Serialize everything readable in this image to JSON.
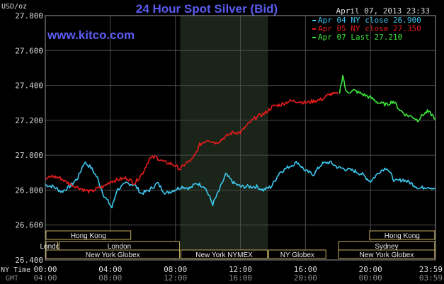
{
  "chart_data": {
    "type": "line",
    "title": "24 Hour Spot Silver (Bid)",
    "ylabel": "USD/oz",
    "date": "April 07, 2013 23:33",
    "watermark": "www.kitco.com",
    "ylim": [
      26.4,
      27.8
    ],
    "y_ticks": [
      "27.800",
      "27.600",
      "27.400",
      "27.200",
      "27.000",
      "26.800",
      "26.600",
      "26.400"
    ],
    "xlim": [
      0,
      24
    ],
    "x_ticks_ny": [
      "00:00",
      "04:00",
      "08:00",
      "12:00",
      "16:00",
      "20:00",
      "23:59"
    ],
    "x_ticks_gmt": [
      "04:00",
      "08:00",
      "12:00",
      "16:00",
      "20:00",
      "00:00",
      "03:59"
    ],
    "x_row_labels": [
      "NY Time",
      "GMT"
    ],
    "grid": true,
    "legend_position": "top-right",
    "highlight_band_hours": [
      8.3,
      13.7
    ],
    "series": [
      {
        "name": "Apr 04 NY close 26.900",
        "color": "#3cc8f0",
        "points": [
          [
            0,
            26.83
          ],
          [
            0.5,
            26.82
          ],
          [
            1,
            26.79
          ],
          [
            1.5,
            26.82
          ],
          [
            2,
            26.87
          ],
          [
            2.4,
            26.96
          ],
          [
            2.8,
            26.93
          ],
          [
            3.2,
            26.87
          ],
          [
            3.6,
            26.77
          ],
          [
            4.1,
            26.7
          ],
          [
            4.4,
            26.8
          ],
          [
            5,
            26.84
          ],
          [
            5.5,
            26.83
          ],
          [
            5.9,
            26.78
          ],
          [
            6.4,
            26.8
          ],
          [
            6.9,
            26.84
          ],
          [
            7.4,
            26.78
          ],
          [
            7.9,
            26.8
          ],
          [
            8.4,
            26.82
          ],
          [
            8.9,
            26.81
          ],
          [
            9.3,
            26.84
          ],
          [
            9.8,
            26.82
          ],
          [
            10.3,
            26.72
          ],
          [
            10.7,
            26.8
          ],
          [
            11.1,
            26.89
          ],
          [
            11.6,
            26.84
          ],
          [
            12,
            26.82
          ],
          [
            12.5,
            26.82
          ],
          [
            13,
            26.82
          ],
          [
            13.4,
            26.8
          ],
          [
            13.9,
            26.82
          ],
          [
            14.4,
            26.9
          ],
          [
            14.9,
            26.93
          ],
          [
            15.5,
            26.96
          ],
          [
            16,
            26.91
          ],
          [
            16.5,
            26.89
          ],
          [
            17,
            26.95
          ],
          [
            17.5,
            26.96
          ],
          [
            18,
            26.93
          ],
          [
            18.5,
            26.92
          ],
          [
            19,
            26.91
          ],
          [
            19.5,
            26.89
          ],
          [
            20,
            26.85
          ],
          [
            20.6,
            26.91
          ],
          [
            21,
            26.93
          ],
          [
            21.5,
            26.85
          ],
          [
            22,
            26.86
          ],
          [
            22.5,
            26.84
          ],
          [
            23,
            26.81
          ],
          [
            23.5,
            26.82
          ],
          [
            23.99,
            26.81
          ]
        ]
      },
      {
        "name": "Apr 05 NY close 27.350",
        "color": "#e81c1c",
        "points": [
          [
            0,
            26.86
          ],
          [
            0.4,
            26.88
          ],
          [
            0.9,
            26.87
          ],
          [
            1.4,
            26.84
          ],
          [
            1.9,
            26.82
          ],
          [
            2.4,
            26.8
          ],
          [
            2.8,
            26.79
          ],
          [
            3.2,
            26.81
          ],
          [
            3.6,
            26.82
          ],
          [
            4,
            26.85
          ],
          [
            4.5,
            26.86
          ],
          [
            5,
            26.87
          ],
          [
            5.5,
            26.84
          ],
          [
            6,
            26.9
          ],
          [
            6.4,
            26.98
          ],
          [
            6.8,
            26.99
          ],
          [
            7.3,
            26.96
          ],
          [
            7.8,
            26.95
          ],
          [
            8.3,
            26.92
          ],
          [
            8.6,
            26.95
          ],
          [
            9.1,
            26.98
          ],
          [
            9.5,
            27.06
          ],
          [
            10,
            27.09
          ],
          [
            10.5,
            27.07
          ],
          [
            11,
            27.1
          ],
          [
            11.5,
            27.13
          ],
          [
            12,
            27.13
          ],
          [
            12.5,
            27.18
          ],
          [
            13,
            27.22
          ],
          [
            13.5,
            27.24
          ],
          [
            14,
            27.28
          ],
          [
            14.5,
            27.29
          ],
          [
            15,
            27.31
          ],
          [
            15.5,
            27.31
          ],
          [
            16,
            27.3
          ],
          [
            16.5,
            27.31
          ],
          [
            17,
            27.32
          ],
          [
            17.5,
            27.35
          ],
          [
            18,
            27.35
          ]
        ]
      },
      {
        "name": "Apr 07 Last 27.210",
        "color": "#3ce83c",
        "points": [
          [
            18.1,
            27.36
          ],
          [
            18.3,
            27.46
          ],
          [
            18.5,
            27.36
          ],
          [
            19,
            27.37
          ],
          [
            19.5,
            27.35
          ],
          [
            20,
            27.33
          ],
          [
            20.5,
            27.3
          ],
          [
            21,
            27.29
          ],
          [
            21.4,
            27.31
          ],
          [
            21.8,
            27.26
          ],
          [
            22.2,
            27.23
          ],
          [
            22.6,
            27.22
          ],
          [
            22.9,
            27.2
          ],
          [
            23.2,
            27.23
          ],
          [
            23.5,
            27.25
          ],
          [
            23.8,
            27.23
          ],
          [
            23.99,
            27.21
          ]
        ]
      }
    ],
    "sessions": [
      {
        "label": "Hong Kong",
        "start": 0,
        "end": 5.3,
        "row": 0
      },
      {
        "label": "Hong Kong",
        "start": 19.9,
        "end": 23.99,
        "row": 0
      },
      {
        "label": "London",
        "start": 0,
        "end": 0.8,
        "row": 1
      },
      {
        "label": "London",
        "start": 0.8,
        "end": 8.3,
        "row": 1
      },
      {
        "label": "Sydney",
        "start": 18.0,
        "end": 23.99,
        "row": 1
      },
      {
        "label": "New York Globex",
        "start": 0,
        "end": 8.3,
        "row": 2
      },
      {
        "label": "New York NYMEX",
        "start": 8.3,
        "end": 13.7,
        "row": 2
      },
      {
        "label": "NY Globex",
        "start": 13.7,
        "end": 17.3,
        "row": 2
      },
      {
        "label": "New York Globex",
        "start": 18.0,
        "end": 23.99,
        "row": 2
      }
    ]
  }
}
